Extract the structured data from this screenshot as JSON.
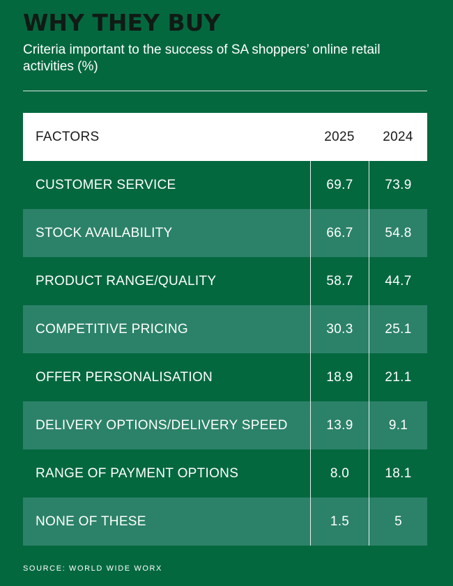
{
  "title": "WHY THEY BUY",
  "subtitle": "Criteria important to the success of SA shoppers’ online retail activities  (%)",
  "source": "SOURCE: WORLD WIDE WORX",
  "colors": {
    "background": "#04683f",
    "band": "#2c8268",
    "header_bg": "#ffffff",
    "title_text": "#111a15"
  },
  "chart_data": {
    "type": "table",
    "title": "WHY THEY BUY",
    "subtitle": "Criteria important to the success of SA shoppers’ online retail activities  (%)",
    "columns": [
      "FACTORS",
      "2025",
      "2024"
    ],
    "rows": [
      {
        "factor": "CUSTOMER SERVICE",
        "v2025": "69.7",
        "v2024": "73.9"
      },
      {
        "factor": "STOCK AVAILABILITY",
        "v2025": "66.7",
        "v2024": "54.8"
      },
      {
        "factor": "PRODUCT RANGE/QUALITY",
        "v2025": "58.7",
        "v2024": "44.7"
      },
      {
        "factor": "COMPETITIVE PRICING",
        "v2025": "30.3",
        "v2024": "25.1"
      },
      {
        "factor": "OFFER PERSONALISATION",
        "v2025": "18.9",
        "v2024": "21.1"
      },
      {
        "factor": "DELIVERY OPTIONS/DELIVERY SPEED",
        "v2025": "13.9",
        "v2024": "9.1"
      },
      {
        "factor": "RANGE OF PAYMENT OPTIONS",
        "v2025": "8.0",
        "v2024": "18.1"
      },
      {
        "factor": "NONE OF THESE",
        "v2025": "1.5",
        "v2024": "5"
      }
    ],
    "source": "SOURCE: WORLD WIDE WORX"
  }
}
